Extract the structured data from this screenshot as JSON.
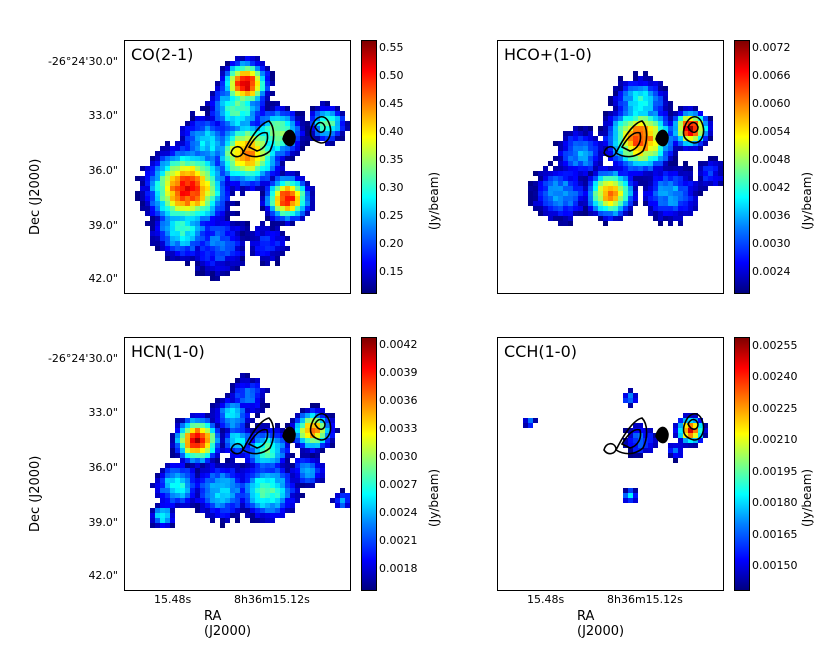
{
  "axes": {
    "ylabel": "Dec (J2000)",
    "xlabel": "RA (J2000)",
    "yticks": [
      "-26°24'30.0\"",
      "33.0\"",
      "36.0\"",
      "39.0\"",
      "42.0\""
    ],
    "xticks": [
      "15.48s",
      "8h36m15.12s"
    ]
  },
  "panels": [
    {
      "label": "CO(2-1)",
      "unit": "(Jy/beam)",
      "cbar_ticks": [
        "0.55",
        "0.50",
        "0.45",
        "0.40",
        "0.35",
        "0.30",
        "0.25",
        "0.20",
        "0.15"
      ],
      "show_y": true,
      "show_x": false
    },
    {
      "label": "HCO+(1-0)",
      "unit": "(Jy/beam)",
      "cbar_ticks": [
        "0.0072",
        "0.0066",
        "0.0060",
        "0.0054",
        "0.0048",
        "0.0042",
        "0.0036",
        "0.0030",
        "0.0024"
      ],
      "show_y": false,
      "show_x": false
    },
    {
      "label": "HCN(1-0)",
      "unit": "(Jy/beam)",
      "cbar_ticks": [
        "0.0042",
        "0.0039",
        "0.0036",
        "0.0033",
        "0.0030",
        "0.0027",
        "0.0024",
        "0.0021",
        "0.0018"
      ],
      "show_y": true,
      "show_x": true
    },
    {
      "label": "CCH(1-0)",
      "unit": "(Jy/beam)",
      "cbar_ticks": [
        "0.00255",
        "0.00240",
        "0.00225",
        "0.00210",
        "0.00195",
        "0.00180",
        "0.00165",
        "0.00150"
      ],
      "show_y": false,
      "show_x": true
    }
  ]
}
